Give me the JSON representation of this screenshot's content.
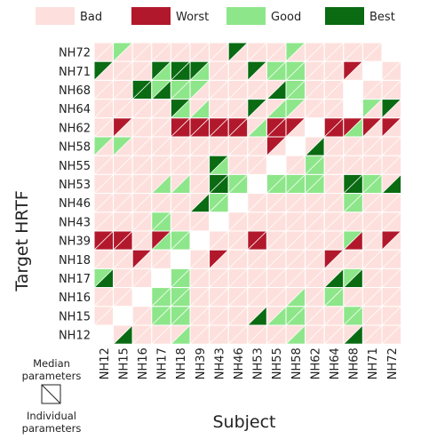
{
  "chart_data": {
    "type": "heatmap",
    "xlabel": "Subject",
    "ylabel": "Target HRTF",
    "subjects": [
      "NH12",
      "NH15",
      "NH16",
      "NH17",
      "NH18",
      "NH39",
      "NH43",
      "NH46",
      "NH53",
      "NH55",
      "NH58",
      "NH62",
      "NH64",
      "NH68",
      "NH71",
      "NH72"
    ],
    "targets": [
      "NH72",
      "NH71",
      "NH68",
      "NH64",
      "NH62",
      "NH58",
      "NH55",
      "NH53",
      "NH46",
      "NH43",
      "NH39",
      "NH18",
      "NH17",
      "NH16",
      "NH15",
      "NH12"
    ],
    "legend": [
      {
        "label": "Bad",
        "color": "#fde0dd",
        "code": "b"
      },
      {
        "label": "Worst",
        "color": "#b2182b",
        "code": "W"
      },
      {
        "label": "Good",
        "color": "#8ee68a",
        "code": "g"
      },
      {
        "label": "Best",
        "color": "#0a6b12",
        "code": "B"
      }
    ],
    "empty_color": "#ffffff",
    "key": {
      "upper_label": "Median\nparameters",
      "lower_label": "Individual\nparameters"
    },
    "cell_encoding": "two characters per cell: first = median-parameters (upper-left triangle), second = individual-parameters (lower-right triangle); b=Bad, W=Worst, g=Good, B=Best, -=empty",
    "cells": [
      [
        "bb",
        "gb",
        "bb",
        "bb",
        "bb",
        "bb",
        "bb",
        "Bb",
        "bb",
        "bb",
        "gb",
        "bb",
        "bb",
        "bb",
        "bb",
        "--"
      ],
      [
        "Bb",
        "bb",
        "bb",
        "Bg",
        "BB",
        "Bg",
        "bb",
        "bb",
        "Bb",
        "gg",
        "gg",
        "bb",
        "bb",
        "Wb",
        "--",
        "bb"
      ],
      [
        "bb",
        "bb",
        "BB",
        "gB",
        "gg",
        "gb",
        "bb",
        "bb",
        "bb",
        "bB",
        "gg",
        "bb",
        "bb",
        "--",
        "bb",
        "bb"
      ],
      [
        "bb",
        "bb",
        "bb",
        "bb",
        "Bg",
        "bg",
        "bb",
        "bb",
        "Bb",
        "bg",
        "gb",
        "bb",
        "bb",
        "--",
        "gb",
        "Bb"
      ],
      [
        "bb",
        "Wb",
        "bb",
        "bb",
        "WW",
        "WW",
        "WW",
        "WW",
        "bg",
        "WW",
        "Wb",
        "--",
        "WW",
        "Wg",
        "Wb",
        "Wb"
      ],
      [
        "gb",
        "gb",
        "bb",
        "bb",
        "bb",
        "bb",
        "bb",
        "bb",
        "bb",
        "Wb",
        "--",
        "bB",
        "bb",
        "bb",
        "bb",
        "bb"
      ],
      [
        "bb",
        "bb",
        "bb",
        "bb",
        "bb",
        "bb",
        "Bg",
        "bb",
        "bb",
        "--",
        "bb",
        "gg",
        "bb",
        "bb",
        "bb",
        "bb"
      ],
      [
        "bb",
        "bb",
        "bb",
        "bg",
        "bg",
        "bb",
        "BB",
        "gg",
        "--",
        "gg",
        "gg",
        "gg",
        "bb",
        "BB",
        "gg",
        "bB"
      ],
      [
        "bb",
        "bb",
        "bb",
        "bb",
        "bb",
        "bB",
        "gg",
        "--",
        "bb",
        "bb",
        "bb",
        "bb",
        "bb",
        "gg",
        "bb",
        "bb"
      ],
      [
        "bb",
        "bb",
        "bb",
        "gg",
        "bb",
        "bb",
        "--",
        "bb",
        "bb",
        "bb",
        "bb",
        "bb",
        "bb",
        "bb",
        "bb",
        "bb"
      ],
      [
        "WW",
        "WW",
        "bb",
        "Wg",
        "gg",
        "--",
        "bb",
        "bb",
        "WW",
        "bb",
        "bb",
        "bb",
        "bb",
        "gW",
        "bb",
        "Wb"
      ],
      [
        "bb",
        "bb",
        "Wb",
        "bb",
        "--",
        "bb",
        "Wb",
        "bb",
        "bb",
        "bb",
        "bb",
        "bb",
        "Wb",
        "bb",
        "bb",
        "bb"
      ],
      [
        "gB",
        "bb",
        "bb",
        "--",
        "gg",
        "bb",
        "bb",
        "bb",
        "bb",
        "bb",
        "bb",
        "bb",
        "bB",
        "gB",
        "bb",
        "bb"
      ],
      [
        "bb",
        "bb",
        "--",
        "gg",
        "gg",
        "bb",
        "bb",
        "bb",
        "bb",
        "bb",
        "bg",
        "bb",
        "gg",
        "bb",
        "bb",
        "bb"
      ],
      [
        "bb",
        "--",
        "bb",
        "gg",
        "gg",
        "bb",
        "bb",
        "bb",
        "bB",
        "bg",
        "gg",
        "bb",
        "bb",
        "gg",
        "bb",
        "bb"
      ],
      [
        "--",
        "bB",
        "bb",
        "bb",
        "bg",
        "bb",
        "bb",
        "bb",
        "bb",
        "bb",
        "bg",
        "bb",
        "bb",
        "bB",
        "bb",
        "bb"
      ]
    ]
  }
}
